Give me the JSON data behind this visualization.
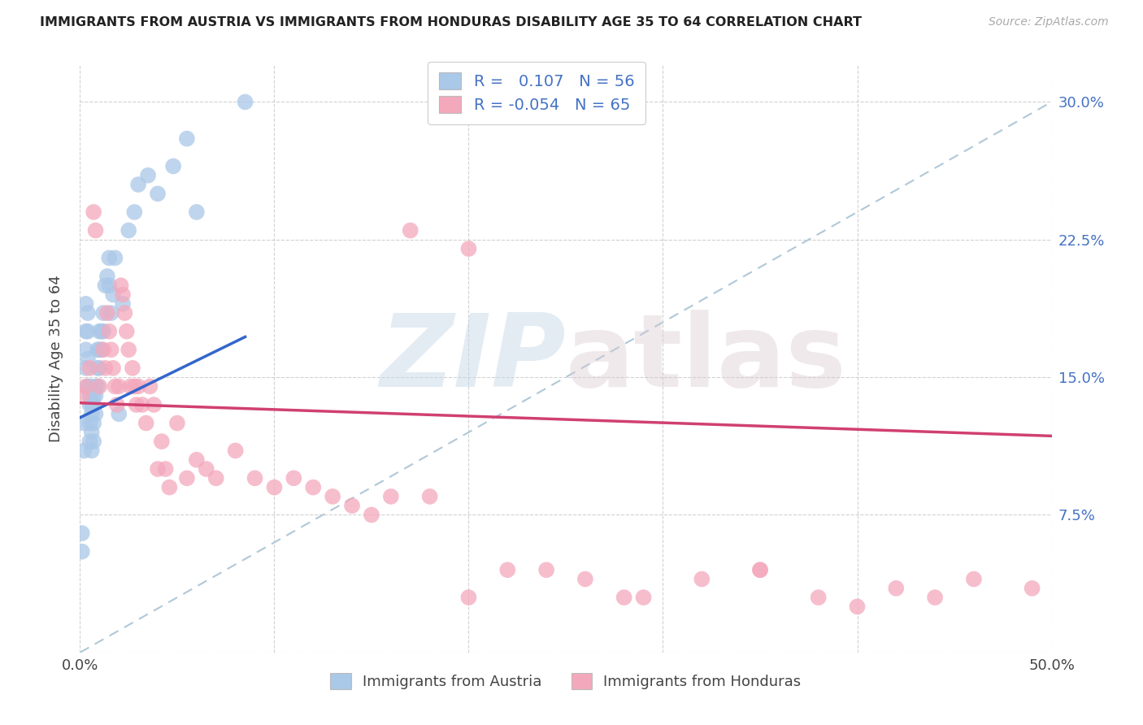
{
  "title": "IMMIGRANTS FROM AUSTRIA VS IMMIGRANTS FROM HONDURAS DISABILITY AGE 35 TO 64 CORRELATION CHART",
  "source": "Source: ZipAtlas.com",
  "ylabel": "Disability Age 35 to 64",
  "xlim": [
    0.0,
    0.5
  ],
  "ylim": [
    0.0,
    0.32
  ],
  "xticks": [
    0.0,
    0.1,
    0.2,
    0.3,
    0.4,
    0.5
  ],
  "xtick_labels": [
    "0.0%",
    "",
    "",
    "",
    "",
    "50.0%"
  ],
  "yticks": [
    0.0,
    0.075,
    0.15,
    0.225,
    0.3
  ],
  "ytick_labels_right": [
    "",
    "7.5%",
    "15.0%",
    "22.5%",
    "30.0%"
  ],
  "R_austria": 0.107,
  "N_austria": 56,
  "R_honduras": -0.054,
  "N_honduras": 65,
  "austria_color": "#aac8e8",
  "honduras_color": "#f4a8bc",
  "austria_line_color": "#3366cc",
  "honduras_line_color": "#d04070",
  "diag_line_color": "#b0c8d8",
  "watermark_zip": "ZIP",
  "watermark_atlas": "atlas",
  "legend_austria": "Immigrants from Austria",
  "legend_honduras": "Immigrants from Honduras",
  "austria_x": [
    0.001,
    0.001,
    0.002,
    0.002,
    0.003,
    0.003,
    0.003,
    0.003,
    0.004,
    0.004,
    0.004,
    0.004,
    0.005,
    0.005,
    0.005,
    0.005,
    0.005,
    0.006,
    0.006,
    0.006,
    0.006,
    0.007,
    0.007,
    0.007,
    0.007,
    0.008,
    0.008,
    0.008,
    0.009,
    0.009,
    0.009,
    0.01,
    0.01,
    0.01,
    0.011,
    0.011,
    0.012,
    0.012,
    0.013,
    0.014,
    0.015,
    0.015,
    0.016,
    0.017,
    0.018,
    0.02,
    0.022,
    0.025,
    0.028,
    0.03,
    0.035,
    0.04,
    0.048,
    0.055,
    0.06,
    0.085
  ],
  "austria_y": [
    0.065,
    0.055,
    0.125,
    0.11,
    0.19,
    0.175,
    0.165,
    0.155,
    0.185,
    0.175,
    0.16,
    0.145,
    0.145,
    0.14,
    0.135,
    0.125,
    0.115,
    0.135,
    0.13,
    0.12,
    0.11,
    0.14,
    0.135,
    0.125,
    0.115,
    0.145,
    0.14,
    0.13,
    0.165,
    0.155,
    0.145,
    0.175,
    0.165,
    0.155,
    0.175,
    0.165,
    0.185,
    0.175,
    0.2,
    0.205,
    0.215,
    0.2,
    0.185,
    0.195,
    0.215,
    0.13,
    0.19,
    0.23,
    0.24,
    0.255,
    0.26,
    0.25,
    0.265,
    0.28,
    0.24,
    0.3
  ],
  "honduras_x": [
    0.001,
    0.003,
    0.005,
    0.007,
    0.008,
    0.01,
    0.012,
    0.013,
    0.014,
    0.015,
    0.016,
    0.017,
    0.018,
    0.019,
    0.02,
    0.021,
    0.022,
    0.023,
    0.024,
    0.025,
    0.026,
    0.027,
    0.028,
    0.029,
    0.03,
    0.032,
    0.034,
    0.036,
    0.038,
    0.04,
    0.042,
    0.044,
    0.046,
    0.05,
    0.055,
    0.06,
    0.065,
    0.07,
    0.08,
    0.09,
    0.1,
    0.11,
    0.12,
    0.13,
    0.14,
    0.15,
    0.16,
    0.18,
    0.2,
    0.22,
    0.26,
    0.28,
    0.32,
    0.35,
    0.38,
    0.4,
    0.42,
    0.44,
    0.46,
    0.49,
    0.35,
    0.29,
    0.24,
    0.2,
    0.17
  ],
  "honduras_y": [
    0.14,
    0.145,
    0.155,
    0.24,
    0.23,
    0.145,
    0.165,
    0.155,
    0.185,
    0.175,
    0.165,
    0.155,
    0.145,
    0.135,
    0.145,
    0.2,
    0.195,
    0.185,
    0.175,
    0.165,
    0.145,
    0.155,
    0.145,
    0.135,
    0.145,
    0.135,
    0.125,
    0.145,
    0.135,
    0.1,
    0.115,
    0.1,
    0.09,
    0.125,
    0.095,
    0.105,
    0.1,
    0.095,
    0.11,
    0.095,
    0.09,
    0.095,
    0.09,
    0.085,
    0.08,
    0.075,
    0.085,
    0.085,
    0.03,
    0.045,
    0.04,
    0.03,
    0.04,
    0.045,
    0.03,
    0.025,
    0.035,
    0.03,
    0.04,
    0.035,
    0.045,
    0.03,
    0.045,
    0.22,
    0.23
  ],
  "austria_trend_x": [
    0.0,
    0.085
  ],
  "austria_trend_y_start": 0.128,
  "austria_trend_y_end": 0.172,
  "honduras_trend_x": [
    0.0,
    0.5
  ],
  "honduras_trend_y_start": 0.136,
  "honduras_trend_y_end": 0.118
}
